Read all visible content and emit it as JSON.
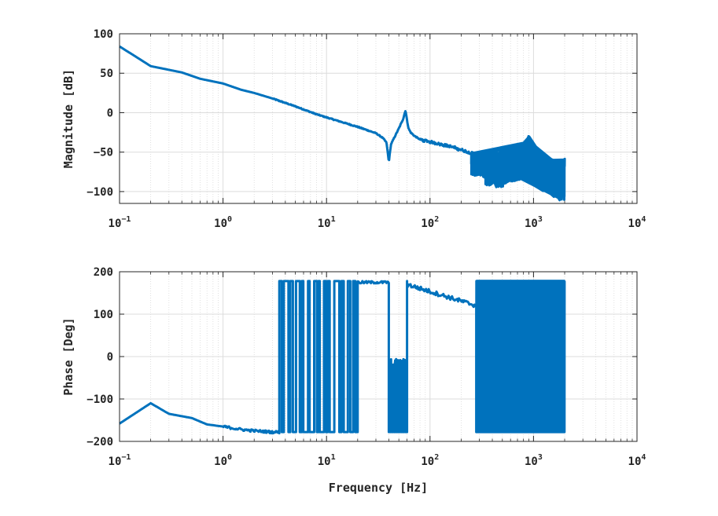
{
  "chart_data": [
    {
      "type": "line",
      "ylabel": "Magnitude [dB]",
      "xlabel": "",
      "x_scale": "log",
      "xlim": [
        0.1,
        10000
      ],
      "ylim": [
        -115,
        100
      ],
      "yticks": [
        100,
        50,
        0,
        -50,
        -100
      ],
      "ytick_labels": [
        "100",
        "50",
        "0",
        "−50",
        "−100"
      ],
      "xtick_labels": [
        {
          "base": "10",
          "exp": "−1"
        },
        {
          "base": "10",
          "exp": "0"
        },
        {
          "base": "10",
          "exp": "1"
        },
        {
          "base": "10",
          "exp": "2"
        },
        {
          "base": "10",
          "exp": "3"
        },
        {
          "base": "10",
          "exp": "4"
        }
      ],
      "grid": true,
      "series": [
        {
          "color": "#0072BD",
          "x": [
            0.1,
            0.2,
            0.4,
            0.6,
            1.0,
            1.5,
            2,
            3,
            5,
            8,
            10,
            15,
            20,
            30,
            35,
            38,
            40,
            42,
            45,
            50,
            55,
            58,
            60,
            62,
            65,
            70,
            80,
            100,
            150,
            200,
            300,
            400,
            500,
            600,
            700,
            800,
            850,
            900,
            950,
            1000,
            1200,
            1500,
            1800,
            2000
          ],
          "y": [
            84,
            59,
            51,
            43,
            37,
            29,
            25,
            18,
            8,
            -2,
            -6,
            -13,
            -18,
            -26,
            -32,
            -38,
            -62,
            -40,
            -32,
            -20,
            -8,
            3,
            -10,
            -20,
            -25,
            -29,
            -34,
            -37,
            -42,
            -47,
            -55,
            -62,
            -65,
            -60,
            -55,
            -45,
            -40,
            -30,
            -42,
            -50,
            -60,
            -62,
            -65,
            -60
          ],
          "noise_band_x": [
            250,
            2000
          ],
          "noise_band_min_y": [
            -80,
            -92,
            -95,
            -88,
            -85,
            -90,
            -100,
            -112
          ]
        }
      ]
    },
    {
      "type": "line",
      "ylabel": "Phase [Deg]",
      "xlabel": "Frequency [Hz]",
      "x_scale": "log",
      "xlim": [
        0.1,
        10000
      ],
      "ylim": [
        -200,
        200
      ],
      "yticks": [
        200,
        100,
        0,
        -100,
        -200
      ],
      "ytick_labels": [
        "200",
        "100",
        "0",
        "−100",
        "−200"
      ],
      "xtick_labels": [
        {
          "base": "10",
          "exp": "−1"
        },
        {
          "base": "10",
          "exp": "0"
        },
        {
          "base": "10",
          "exp": "1"
        },
        {
          "base": "10",
          "exp": "2"
        },
        {
          "base": "10",
          "exp": "3"
        },
        {
          "base": "10",
          "exp": "4"
        }
      ],
      "grid": true,
      "series": [
        {
          "color": "#0072BD",
          "x": [
            0.1,
            0.2,
            0.3,
            0.5,
            0.7,
            1.0,
            1.5,
            2,
            3,
            3.5
          ],
          "y": [
            -158,
            -110,
            -135,
            -145,
            -160,
            -165,
            -172,
            -175,
            -178,
            -178
          ],
          "wrap_region_x": [
            3.5,
            20
          ],
          "wrap_top_y": 178,
          "wrap_bottom_y": -178,
          "plateau_x": [
            20,
            40
          ],
          "plateau_y": 175,
          "resonance_x": [
            40,
            60
          ],
          "resonance_y": -20,
          "decay_x": [
            60,
            280
          ],
          "decay_y": [
            170,
            120
          ],
          "dense_wrap_x": [
            280,
            2000
          ]
        }
      ]
    }
  ]
}
